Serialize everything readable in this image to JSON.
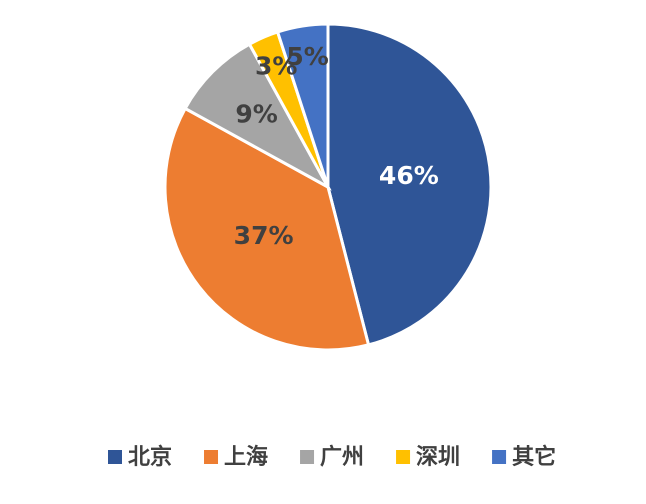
{
  "chart_data": {
    "type": "pie",
    "categories": [
      "北京",
      "上海",
      "广州",
      "深圳",
      "其它"
    ],
    "values": [
      46,
      37,
      9,
      3,
      5
    ],
    "value_labels": [
      "46%",
      "37%",
      "9%",
      "3%",
      "5%"
    ],
    "colors": [
      "#2f5597",
      "#ed7d31",
      "#a5a5a5",
      "#ffc000",
      "#4472c4"
    ],
    "legend": "bottom"
  }
}
